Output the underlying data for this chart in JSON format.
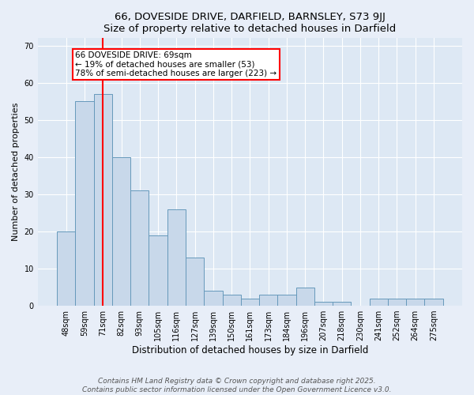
{
  "title1": "66, DOVESIDE DRIVE, DARFIELD, BARNSLEY, S73 9JJ",
  "title2": "Size of property relative to detached houses in Darfield",
  "xlabel": "Distribution of detached houses by size in Darfield",
  "ylabel": "Number of detached properties",
  "categories": [
    "48sqm",
    "59sqm",
    "71sqm",
    "82sqm",
    "93sqm",
    "105sqm",
    "116sqm",
    "127sqm",
    "139sqm",
    "150sqm",
    "161sqm",
    "173sqm",
    "184sqm",
    "196sqm",
    "207sqm",
    "218sqm",
    "230sqm",
    "241sqm",
    "252sqm",
    "264sqm",
    "275sqm"
  ],
  "values": [
    20,
    55,
    57,
    40,
    31,
    19,
    26,
    13,
    4,
    3,
    2,
    3,
    3,
    5,
    1,
    1,
    0,
    2,
    2,
    2,
    2
  ],
  "bar_color": "#c8d8ea",
  "bar_edge_color": "#6699bb",
  "red_line_index": 2,
  "annotation_line1": "66 DOVESIDE DRIVE: 69sqm",
  "annotation_line2": "← 19% of detached houses are smaller (53)",
  "annotation_line3": "78% of semi-detached houses are larger (223) →",
  "ylim": [
    0,
    72
  ],
  "yticks": [
    0,
    10,
    20,
    30,
    40,
    50,
    60,
    70
  ],
  "footer1": "Contains HM Land Registry data © Crown copyright and database right 2025.",
  "footer2": "Contains public sector information licensed under the Open Government Licence v3.0.",
  "bg_color": "#e8eef8",
  "plot_bg_color": "#dde8f4",
  "grid_color": "#ffffff",
  "title_fontsize": 9.5,
  "xlabel_fontsize": 8.5,
  "ylabel_fontsize": 8,
  "tick_fontsize": 7,
  "footer_fontsize": 6.5,
  "ann_fontsize": 7.5
}
